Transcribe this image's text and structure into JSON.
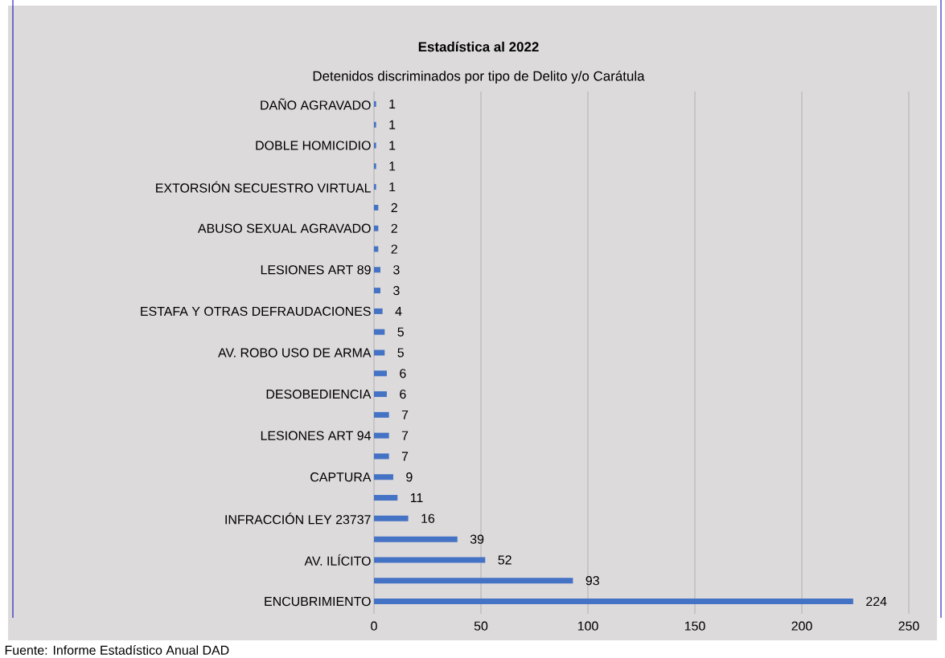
{
  "chart_data": {
    "type": "bar",
    "orientation": "horizontal",
    "title": "Estadística al 2022",
    "subtitle": "Detenidos discriminados por tipo de Delito y/o Carátula",
    "categories": [
      "DAÑO AGRAVADO",
      null,
      "DOBLE HOMICIDIO",
      null,
      "EXTORSIÓN SECUESTRO VIRTUAL",
      null,
      "ABUSO SEXUAL AGRAVADO",
      null,
      "LESIONES ART 89",
      null,
      "ESTAFA Y OTRAS DEFRAUDACIONES",
      null,
      "AV. ROBO USO DE ARMA",
      null,
      "DESOBEDIENCIA",
      null,
      "LESIONES ART 94",
      null,
      "CAPTURA",
      null,
      "INFRACCIÓN LEY 23737",
      null,
      "AV. ILÍCITO",
      null,
      "ENCUBRIMIENTO"
    ],
    "values": [
      1,
      1,
      1,
      1,
      1,
      2,
      2,
      2,
      3,
      3,
      4,
      5,
      5,
      6,
      6,
      7,
      7,
      7,
      9,
      11,
      16,
      39,
      52,
      93,
      224
    ],
    "color": "#4472c4",
    "xlim": [
      0,
      250
    ],
    "xticks": [
      0,
      50,
      100,
      150,
      200,
      250
    ],
    "grid": "x",
    "data_labels": true,
    "annotations": [
      "Fuente: Informe Estadístico Anual DAD"
    ]
  }
}
